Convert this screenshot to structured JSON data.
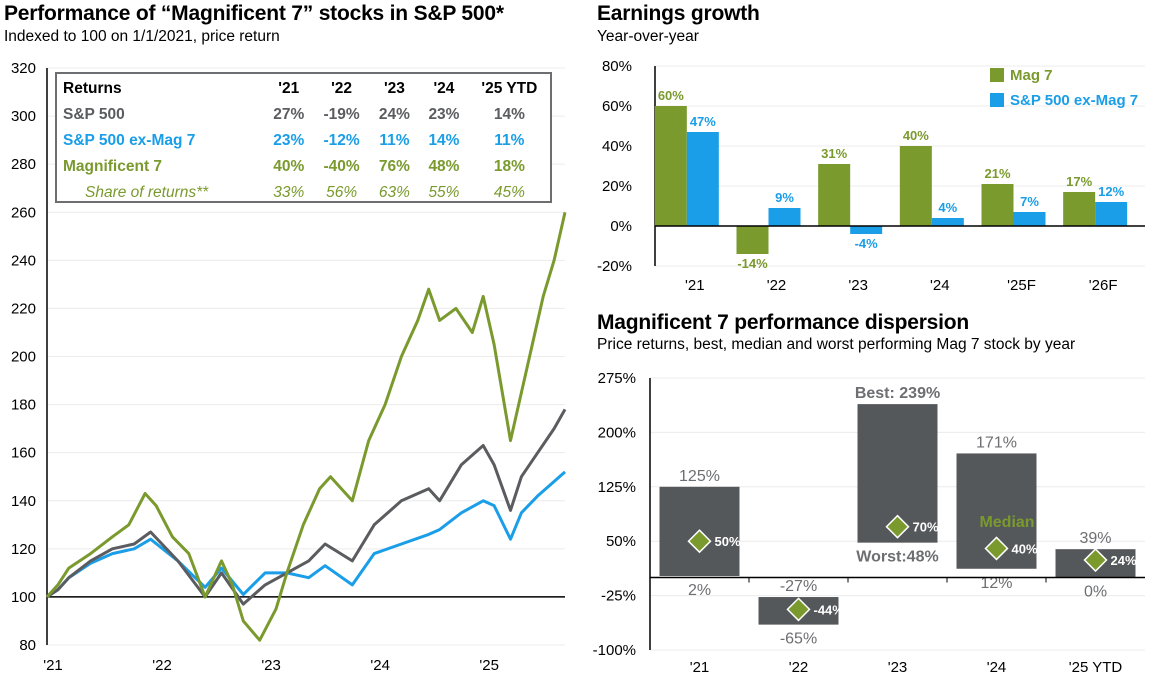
{
  "left": {
    "title": "Performance of “Magnificent 7” stocks in S&P 500*",
    "subtitle": "Indexed to 100 on 1/1/2021, price return",
    "table": {
      "header": [
        "Returns",
        "'21",
        "'22",
        "'23",
        "'24",
        "'25 YTD"
      ],
      "rows": [
        {
          "label": "S&P 500",
          "values": [
            "27%",
            "-19%",
            "24%",
            "23%",
            "14%"
          ]
        },
        {
          "label": "S&P 500 ex-Mag 7",
          "values": [
            "23%",
            "-12%",
            "11%",
            "14%",
            "11%"
          ]
        },
        {
          "label": "Magnificent 7",
          "values": [
            "40%",
            "-40%",
            "76%",
            "48%",
            "18%"
          ]
        },
        {
          "label": "Share of returns**",
          "values": [
            "33%",
            "56%",
            "63%",
            "55%",
            "45%"
          ]
        }
      ]
    }
  },
  "right_top": {
    "title": "Earnings growth",
    "subtitle": "Year-over-year"
  },
  "right_bottom": {
    "title": "Magnificent 7 performance dispersion",
    "subtitle": "Price returns, best, median and worst performing Mag 7 stock by year"
  },
  "colors": {
    "mag7": "#7a9a2e",
    "sp500": "#5b5c5f",
    "exmag": "#1a9ee8",
    "bar": "#55585b",
    "diamond": "#7a9a2e"
  },
  "chart_data": [
    {
      "type": "line",
      "title": "Performance of “Magnificent 7” stocks in S&P 500*",
      "ylim": [
        80,
        320
      ],
      "yticks": [
        "80",
        "100",
        "120",
        "140",
        "160",
        "180",
        "200",
        "220",
        "240",
        "260",
        "280",
        "300",
        "320"
      ],
      "xlim": [
        2021.0,
        2025.75
      ],
      "xticks": [
        {
          "label": "'21",
          "x": 2021.0
        },
        {
          "label": "'22",
          "x": 2022.0
        },
        {
          "label": "'23",
          "x": 2023.0
        },
        {
          "label": "'24",
          "x": 2024.0
        },
        {
          "label": "'25",
          "x": 2025.0
        }
      ],
      "series": [
        {
          "name": "S&P 500 ex-Mag 7",
          "color": "#1a9ee8",
          "x": [
            2021.0,
            2021.1,
            2021.2,
            2021.4,
            2021.6,
            2021.8,
            2021.95,
            2022.2,
            2022.45,
            2022.6,
            2022.8,
            2023.0,
            2023.2,
            2023.4,
            2023.55,
            2023.8,
            2024.0,
            2024.25,
            2024.5,
            2024.6,
            2024.8,
            2025.0,
            2025.1,
            2025.25,
            2025.35,
            2025.5,
            2025.65,
            2025.75
          ],
          "y": [
            100,
            103,
            108,
            114,
            118,
            120,
            124,
            115,
            104,
            112,
            101,
            110,
            110,
            108,
            113,
            105,
            118,
            122,
            126,
            128,
            135,
            140,
            138,
            124,
            135,
            142,
            148,
            152
          ]
        },
        {
          "name": "S&P 500",
          "color": "#5b5c5f",
          "x": [
            2021.0,
            2021.1,
            2021.2,
            2021.4,
            2021.6,
            2021.8,
            2021.95,
            2022.2,
            2022.45,
            2022.6,
            2022.8,
            2023.0,
            2023.2,
            2023.4,
            2023.55,
            2023.8,
            2024.0,
            2024.25,
            2024.5,
            2024.6,
            2024.8,
            2025.0,
            2025.1,
            2025.25,
            2025.35,
            2025.5,
            2025.65,
            2025.75
          ],
          "y": [
            100,
            103,
            108,
            115,
            120,
            122,
            127,
            115,
            100,
            110,
            97,
            105,
            110,
            115,
            122,
            115,
            130,
            140,
            145,
            140,
            155,
            163,
            155,
            136,
            150,
            160,
            170,
            178
          ]
        },
        {
          "name": "Magnificent 7",
          "color": "#7a9a2e",
          "x": [
            2021.0,
            2021.1,
            2021.2,
            2021.4,
            2021.6,
            2021.75,
            2021.9,
            2022.0,
            2022.15,
            2022.3,
            2022.45,
            2022.6,
            2022.7,
            2022.8,
            2022.95,
            2023.1,
            2023.2,
            2023.35,
            2023.5,
            2023.6,
            2023.8,
            2023.95,
            2024.1,
            2024.25,
            2024.4,
            2024.5,
            2024.6,
            2024.75,
            2024.9,
            2025.0,
            2025.1,
            2025.25,
            2025.35,
            2025.45,
            2025.55,
            2025.65,
            2025.75
          ],
          "y": [
            100,
            105,
            112,
            118,
            125,
            130,
            143,
            138,
            125,
            118,
            100,
            115,
            105,
            90,
            82,
            95,
            110,
            130,
            145,
            150,
            140,
            165,
            180,
            200,
            215,
            228,
            215,
            220,
            210,
            225,
            205,
            165,
            185,
            205,
            225,
            240,
            260
          ]
        }
      ]
    },
    {
      "type": "bar",
      "title": "Earnings growth",
      "ylim": [
        -20,
        80
      ],
      "yticks": [
        "-20%",
        "0%",
        "20%",
        "40%",
        "60%",
        "80%"
      ],
      "categories": [
        "'21",
        "'22",
        "'23",
        "'24",
        "'25F",
        "'26F"
      ],
      "series": [
        {
          "name": "Mag 7",
          "color": "#7a9a2e",
          "values": [
            60,
            -14,
            31,
            40,
            21,
            17
          ],
          "labels": [
            "60%",
            "-14%",
            "31%",
            "40%",
            "21%",
            "17%"
          ]
        },
        {
          "name": "S&P 500 ex-Mag 7",
          "color": "#1a9ee8",
          "values": [
            47,
            9,
            -4,
            4,
            7,
            12
          ],
          "labels": [
            "47%",
            "9%",
            "-4%",
            "4%",
            "7%",
            "12%"
          ]
        }
      ],
      "legend": "top-right"
    },
    {
      "type": "bar",
      "title": "Magnificent 7 performance dispersion",
      "ylim": [
        -100,
        275
      ],
      "yticks": [
        "-100%",
        "-25%",
        "50%",
        "125%",
        "200%",
        "275%"
      ],
      "categories": [
        "'21",
        "'22",
        "'23",
        "'24",
        "'25 YTD"
      ],
      "best": [
        125,
        -27,
        239,
        171,
        39
      ],
      "worst": [
        2,
        -65,
        48,
        12,
        0
      ],
      "median": [
        50,
        -44,
        70,
        40,
        24
      ],
      "best_labels": [
        "125%",
        "-27%",
        "Best: 239%",
        "171%",
        "39%"
      ],
      "worst_labels": [
        "2%",
        "-65%",
        "Worst:48%",
        "12%",
        "0%"
      ],
      "median_labels": [
        "50%",
        "-44%",
        "70%",
        "40%",
        "24%"
      ],
      "annotation": "Median"
    }
  ]
}
